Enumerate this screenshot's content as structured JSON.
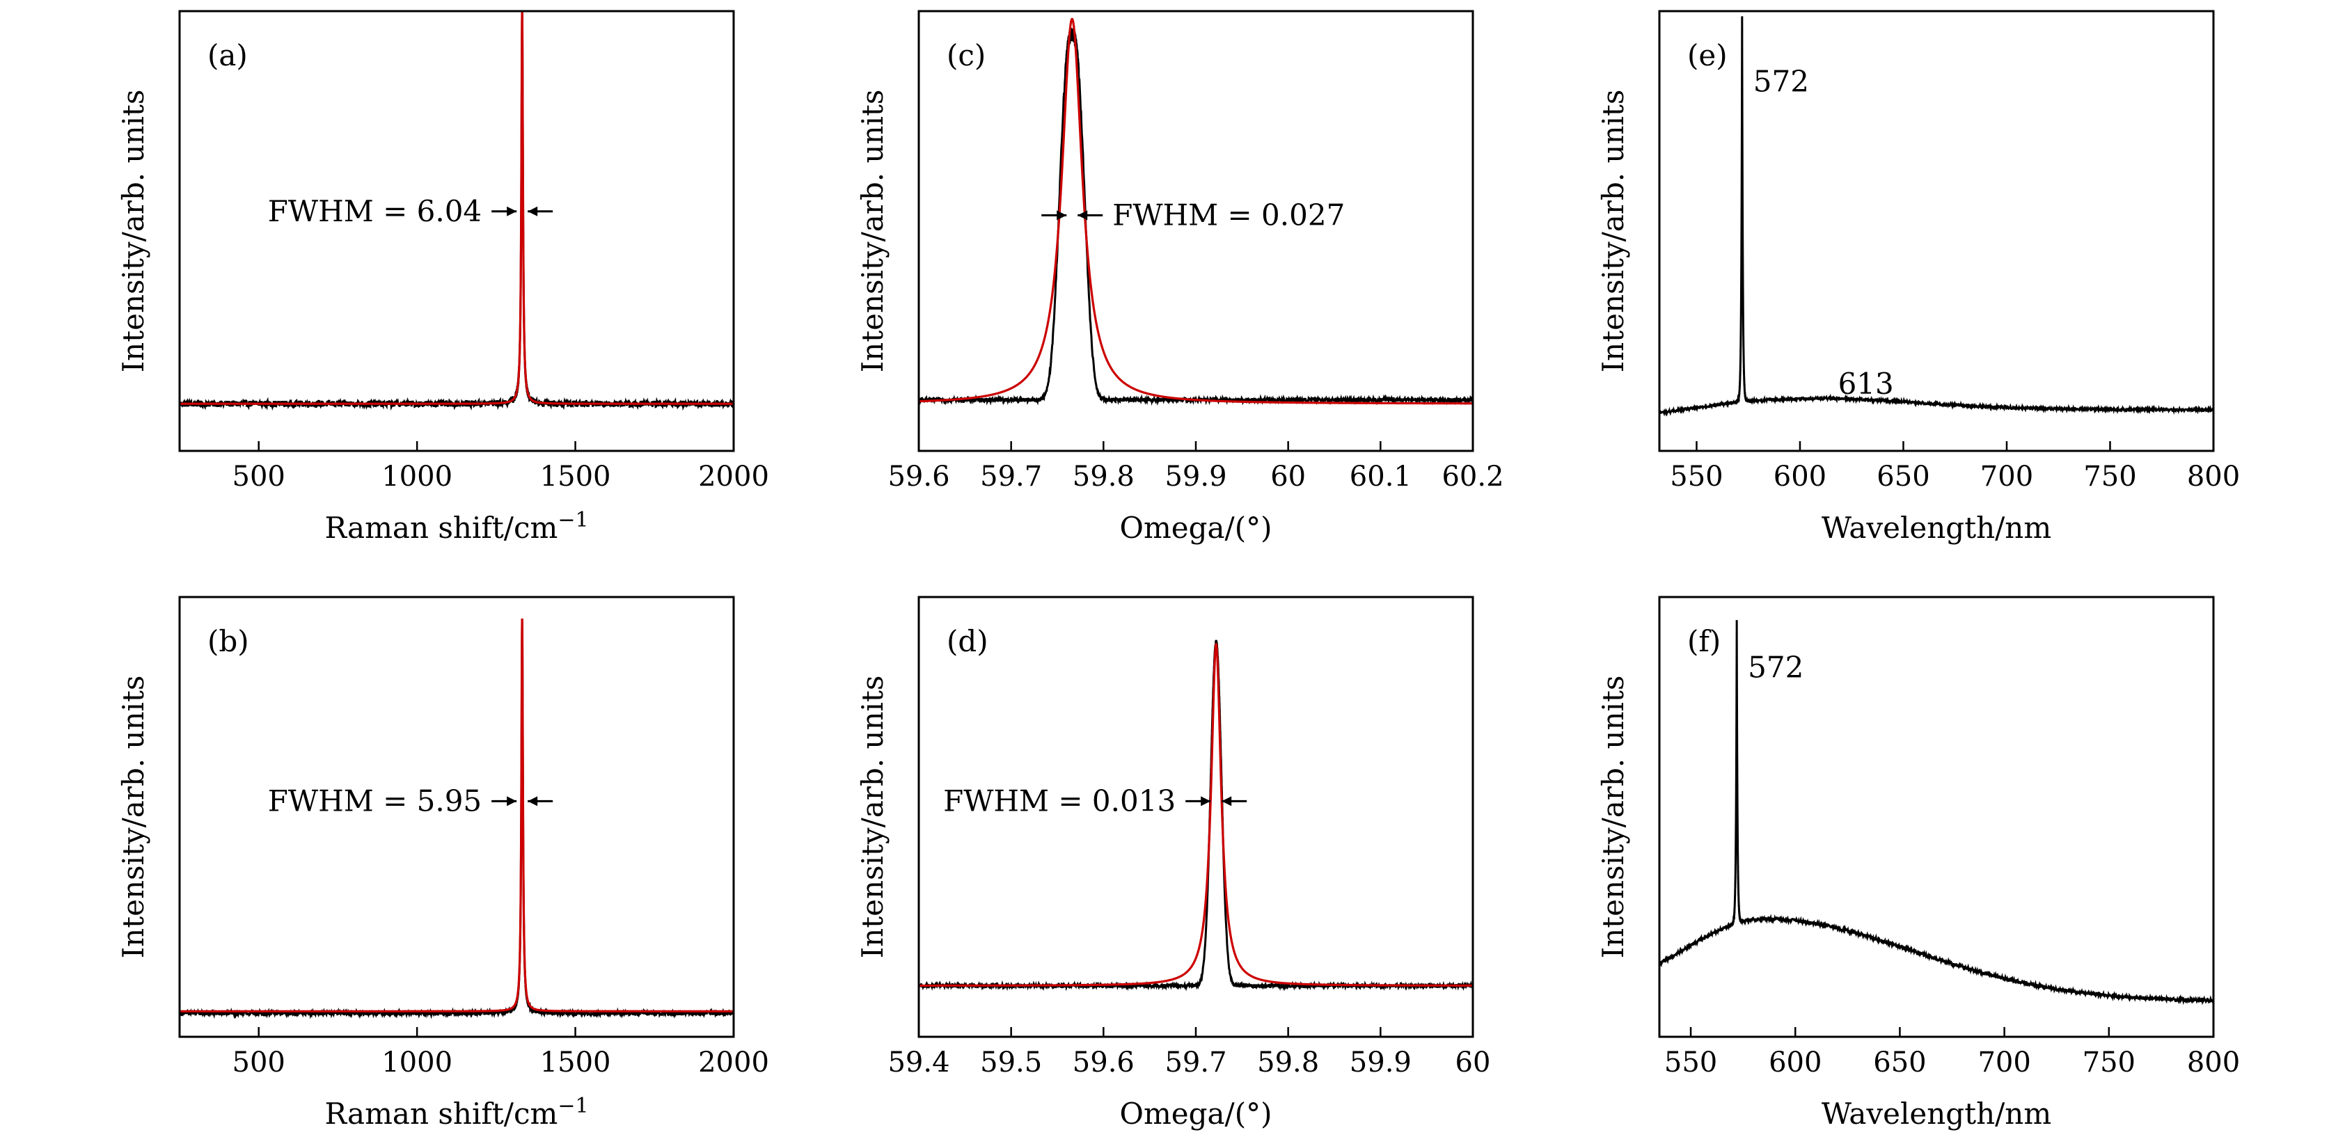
{
  "chart_data": [
    {
      "panel": "(a)",
      "type": "line",
      "xlabel": "Raman shift/cm",
      "xlabel_sup": "−1",
      "ylabel": "Intensity/arb. units",
      "xlim": [
        250,
        2000
      ],
      "ylim": [
        0,
        1.12
      ],
      "xticks": [
        500,
        1000,
        1500,
        2000
      ],
      "series": [
        {
          "color": "#000000",
          "shape": "raman",
          "x0": 1332,
          "fwhm": 6.04,
          "base": 0.12,
          "amp": 1.0,
          "noise": 0.008
        },
        {
          "color": "#cc0000",
          "shape": "raman",
          "x0": 1332,
          "fwhm": 6.04,
          "base": 0.12,
          "amp": 1.0,
          "noise": 0
        }
      ],
      "annotations": [
        {
          "text": "FWHM = 6.04",
          "x": 1332,
          "y": 0.61,
          "side": "left"
        }
      ]
    },
    {
      "panel": "(b)",
      "type": "line",
      "xlabel": "Raman shift/cm",
      "xlabel_sup": "−1",
      "ylabel": "Intensity/arb. units",
      "xlim": [
        250,
        2000
      ],
      "ylim": [
        0,
        1.12
      ],
      "xticks": [
        500,
        1000,
        1500,
        2000
      ],
      "series": [
        {
          "color": "#000000",
          "shape": "raman",
          "x0": 1332,
          "fwhm": 5.95,
          "base": 0.06,
          "amp": 1.0,
          "noise": 0.005
        },
        {
          "color": "#cc0000",
          "shape": "raman",
          "x0": 1332,
          "fwhm": 5.95,
          "base": 0.065,
          "amp": 1.0,
          "noise": 0
        }
      ],
      "annotations": [
        {
          "text": "FWHM = 5.95",
          "x": 1332,
          "y": 0.6,
          "side": "left"
        }
      ]
    },
    {
      "panel": "(c)",
      "type": "line",
      "xlabel": "Omega/(°)",
      "ylabel": "Intensity/arb. units",
      "xlim": [
        59.6,
        60.2
      ],
      "ylim": [
        0,
        1.12
      ],
      "xticks": [
        59.6,
        59.7,
        59.8,
        59.9,
        60.0,
        60.1,
        60.2
      ],
      "series": [
        {
          "color": "#000000",
          "shape": "rocking-flat",
          "x0": 59.766,
          "fwhm": 0.027,
          "base": 0.13,
          "amp": 0.93,
          "noise": 0.012
        },
        {
          "color": "#cc0000",
          "shape": "lorentz",
          "x0": 59.766,
          "fwhm": 0.027,
          "base": 0.12,
          "amp": 0.98,
          "noise": 0
        }
      ],
      "annotations": [
        {
          "text": "FWHM = 0.027",
          "x": 59.766,
          "y": 0.6,
          "side": "right"
        }
      ]
    },
    {
      "panel": "(d)",
      "type": "line",
      "xlabel": "Omega/(°)",
      "ylabel": "Intensity/arb. units",
      "xlim": [
        59.4,
        60.0
      ],
      "ylim": [
        0,
        1.12
      ],
      "xticks": [
        59.4,
        59.5,
        59.6,
        59.7,
        59.8,
        59.9,
        60.0
      ],
      "series": [
        {
          "color": "#000000",
          "shape": "rocking",
          "x0": 59.722,
          "fwhm": 0.013,
          "base": 0.13,
          "amp": 0.87,
          "noise": 0.008
        },
        {
          "color": "#cc0000",
          "shape": "lorentz",
          "x0": 59.722,
          "fwhm": 0.013,
          "base": 0.13,
          "amp": 0.87,
          "noise": 0
        }
      ],
      "annotations": [
        {
          "text": "FWHM = 0.013",
          "x": 59.722,
          "y": 0.6,
          "side": "left"
        }
      ]
    },
    {
      "panel": "(e)",
      "type": "line",
      "xlabel": "Wavelength/nm",
      "ylabel": "Intensity/arb. units",
      "xlim": [
        532,
        800
      ],
      "ylim": [
        0,
        1.12
      ],
      "xticks": [
        550,
        600,
        650,
        700,
        750,
        800
      ],
      "series": [
        {
          "color": "#000000",
          "shape": "pl-e",
          "noise": 0.003
        }
      ],
      "labels": [
        {
          "text": "572",
          "x": 572,
          "y": 0.94
        },
        {
          "text": "613",
          "x": 613,
          "y": 0.17
        }
      ]
    },
    {
      "panel": "(f)",
      "type": "line",
      "xlabel": "Wavelength/nm",
      "ylabel": "Intensity/arb. units",
      "xlim": [
        535,
        800
      ],
      "ylim": [
        0,
        1.12
      ],
      "xticks": [
        550,
        600,
        650,
        700,
        750,
        800
      ],
      "series": [
        {
          "color": "#000000",
          "shape": "pl-f",
          "noise": 0.004
        }
      ],
      "labels": [
        {
          "text": "572",
          "x": 572,
          "y": 0.94
        }
      ]
    }
  ]
}
